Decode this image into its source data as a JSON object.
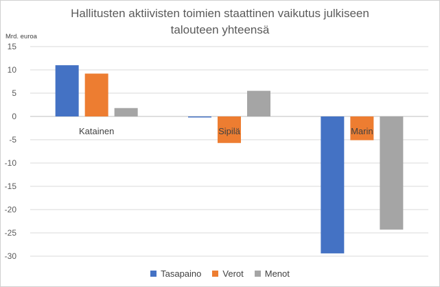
{
  "chart_data": {
    "type": "bar",
    "title": "Hallitusten aktiivisten toimien staattinen vaikutus julkiseen talouteen yhteensä",
    "title_lines": [
      "Hallitusten aktiivisten toimien staattinen vaikutus julkiseen",
      "talouteen yhteensä"
    ],
    "ylabel": "Mrd. euroa",
    "xlabel": "",
    "ylim": [
      -30,
      15
    ],
    "yticks": [
      15,
      10,
      5,
      0,
      -5,
      -10,
      -15,
      -20,
      -25,
      -30
    ],
    "grid": true,
    "legend_position": "bottom",
    "categories": [
      "Katainen",
      "Sipilä",
      "Marin"
    ],
    "series": [
      {
        "name": "Tasapaino",
        "color": "#4472C4",
        "values": [
          11.0,
          -0.2,
          -29.4
        ]
      },
      {
        "name": "Verot",
        "color": "#ED7D31",
        "values": [
          9.2,
          -5.7,
          -5.1
        ]
      },
      {
        "name": "Menot",
        "color": "#A5A5A5",
        "values": [
          1.8,
          5.5,
          -24.3
        ]
      }
    ]
  }
}
